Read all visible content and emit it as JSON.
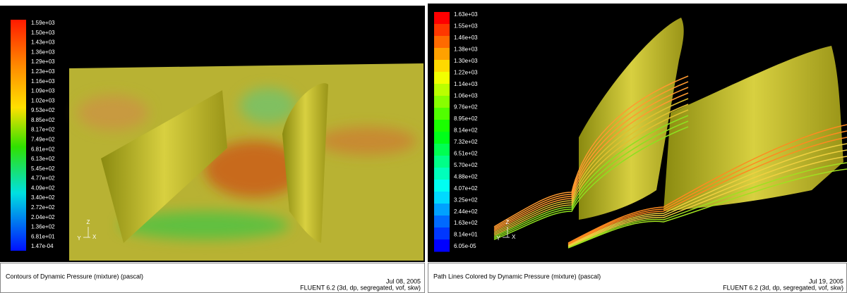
{
  "left": {
    "legend": [
      "1.59e+03",
      "1.50e+03",
      "1.43e+03",
      "1.36e+03",
      "1.29e+03",
      "1.23e+03",
      "1.16e+03",
      "1.09e+03",
      "1.02e+03",
      "9.53e+02",
      "8.85e+02",
      "8.17e+02",
      "7.49e+02",
      "6.81e+02",
      "6.13e+02",
      "5.45e+02",
      "4.77e+02",
      "4.09e+02",
      "3.40e+02",
      "2.72e+02",
      "2.04e+02",
      "1.36e+02",
      "6.81e+01",
      "1.47e-04"
    ],
    "axes": [
      "Z",
      "Y",
      "X"
    ],
    "caption": "Contours of Dynamic Pressure (mixture)  (pascal)",
    "date": "Jul 08, 2005",
    "solver": "FLUENT 6.2 (3d, dp, segregated, vof, skw)"
  },
  "right": {
    "legend": [
      "1.63e+03",
      "1.55e+03",
      "1.46e+03",
      "1.38e+03",
      "1.30e+03",
      "1.22e+03",
      "1.14e+03",
      "1.06e+03",
      "9.76e+02",
      "8.95e+02",
      "8.14e+02",
      "7.32e+02",
      "6.51e+02",
      "5.70e+02",
      "4.88e+02",
      "4.07e+02",
      "3.25e+02",
      "2.44e+02",
      "1.63e+02",
      "8.14e+01",
      "6.05e-05"
    ],
    "axes": [
      "Z",
      "Y",
      "X"
    ],
    "caption": "Path Lines Colored by Dynamic Pressure (mixture)  (pascal)",
    "date": "Jul 19, 2005",
    "solver": "FLUENT 6.2 (3d, dp, segregated, vof, skw)"
  }
}
